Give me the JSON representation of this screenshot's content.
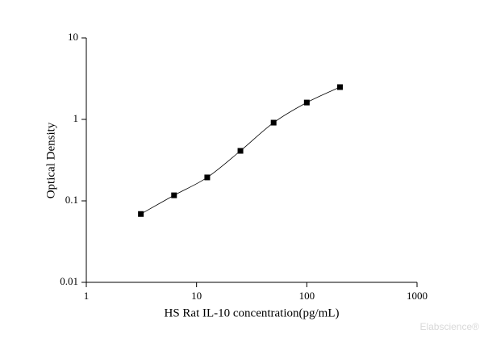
{
  "chart_data": {
    "type": "line",
    "x_label": "HS Rat IL-10 concentration(pg/mL)",
    "y_label": "Optical Density",
    "x": [
      3.125,
      6.25,
      12.5,
      25,
      50,
      100,
      200
    ],
    "series": [
      {
        "color": "#000000",
        "values": [
          0.069,
          0.117,
          0.194,
          0.411,
          0.912,
          1.61,
          2.49
        ]
      }
    ],
    "xlim": [
      1,
      1000
    ],
    "xticks": [
      1,
      10,
      100,
      1000
    ],
    "ylim": [
      0.01,
      10
    ],
    "yticks": [
      0.01,
      0.1,
      1,
      10
    ],
    "xscale": "log",
    "yscale": "log",
    "grid": false,
    "marker": "square",
    "watermark": "Elabscience®"
  }
}
